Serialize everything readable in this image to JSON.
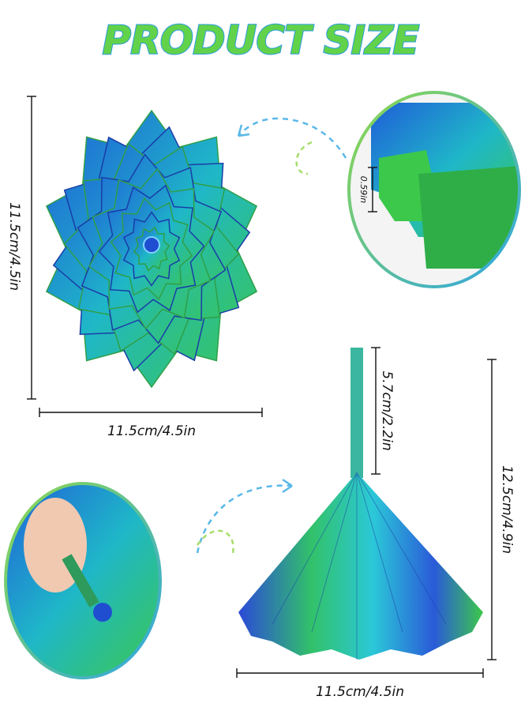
{
  "title": "PRODUCT SIZE",
  "dimensions": {
    "flat_height": "11.5cm/4.5in",
    "flat_width": "11.5cm/4.5in",
    "thickness": "0.59in",
    "stick_length": "5.7cm/2.2in",
    "cone_height": "12.5cm/4.9in",
    "cone_width": "11.5cm/4.5in"
  }
}
